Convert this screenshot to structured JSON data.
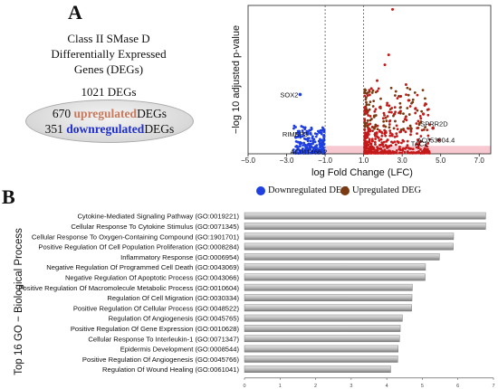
{
  "panel_a": {
    "letter": "A",
    "title_lines": [
      "Class II SMase D",
      "Differentially Expressed",
      "Genes (DEGs)"
    ],
    "total_degs": "1021 DEGs",
    "up_count": "670",
    "up_word": "upregulated",
    "up_suffix": "DEGs",
    "down_count": "351",
    "down_word": "downregulated",
    "down_suffix": "DEGs"
  },
  "panel_b": {
    "letter": "B"
  },
  "colors": {
    "downregulated": "#1f3fe0",
    "upregulated": "#c41a1a",
    "up_legend": "#7a3a12",
    "threshold_band": "#f7c8d0",
    "bar_fill": "#b9b9b9"
  },
  "chart_data": [
    {
      "type": "scatter",
      "title": "",
      "xlabel": "log Fold Change (LFC)",
      "ylabel": "−log 10 adjusted p-value",
      "xlim": [
        -5,
        7.6
      ],
      "ylim": [
        0,
        75
      ],
      "x_ticks": [
        -5.0,
        -3.0,
        -1.0,
        1.0,
        3.0,
        5.0,
        7.0
      ],
      "x_tick_labels": [
        "−5.0",
        "−3.0",
        "−1.0",
        "1.0",
        "3.0",
        "5.0",
        "7.0"
      ],
      "threshold_lines_x": [
        -1.0,
        1.0
      ],
      "legend": {
        "placement": "bottom",
        "entries": [
          "Downregulated DEG",
          "Upregulated DEG"
        ]
      },
      "labeled_points": [
        {
          "label": "SOX2",
          "x": -2.3,
          "y": 30
        },
        {
          "label": "RIMBP3",
          "x": -1.9,
          "y": 10
        },
        {
          "label": "AC011466.2",
          "x": -1.6,
          "y": 1.5
        },
        {
          "label": "SPRR2D",
          "x": 4.6,
          "y": 13
        },
        {
          "label": "AC053904.4",
          "x": 4.9,
          "y": 7
        },
        {
          "label": "TAC1",
          "x": 4.3,
          "y": 2
        }
      ],
      "series": [
        {
          "name": "Downregulated DEG",
          "count": 351
        },
        {
          "name": "Upregulated DEG",
          "count": 670
        }
      ]
    },
    {
      "type": "bar",
      "orientation": "horizontal",
      "title": "",
      "xlabel": "−log(FDR)",
      "ylabel": "Top 16 GO − Biological Process",
      "xlim": [
        0,
        7
      ],
      "x_ticks": [
        0,
        1,
        2,
        3,
        4,
        5,
        6,
        7
      ],
      "categories": [
        "Cytokine-Mediated Signaling Pathway (GO:0019221)",
        "Cellular Response To Cytokine Stimulus (GO:0071345)",
        "Cellular Response To Oxygen-Containing Compound (GO:1901701)",
        "Positive Regulation Of Cell Population Proliferation (GO:0008284)",
        "Inflammatory Response (GO:0006954)",
        "Negative Regulation Of Programmed Cell Death (GO:0043069)",
        "Negative Regulation Of Apoptotic Process (GO:0043066)",
        "Positive Regulation Of Macromolecule Metabolic Process (GO:0010604)",
        "Regulation Of Cell Migration (GO:0030334)",
        "Positive Regulation Of Cellular Process (GO:0048522)",
        "Regulation Of Angiogenesis (GO:0045765)",
        "Positive Regulation Of Gene Expression (GO:0010628)",
        "Cellular Response To Interleukin-1 (GO:0071347)",
        "Epidermis Development (GO:0008544)",
        "Positive Regulation Of Angiogenesis (GO:0045766)",
        "Regulation Of Wound Healing (GO:0061041)"
      ],
      "values": [
        6.78,
        6.78,
        5.88,
        5.87,
        5.48,
        5.09,
        5.08,
        4.72,
        4.71,
        4.7,
        4.44,
        4.38,
        4.36,
        4.32,
        4.31,
        4.11
      ]
    }
  ]
}
